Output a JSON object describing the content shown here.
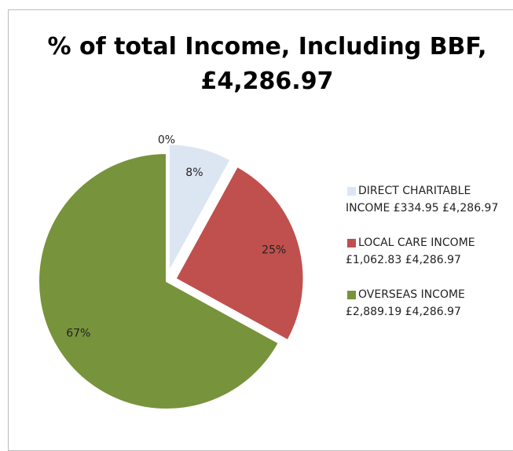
{
  "chart_data": {
    "type": "pie",
    "title": "% of total  Income, Including BBF, £4,286.97",
    "categories": [
      null,
      "DIRECT CHARITABLE INCOME  £334.95 £4,286.97",
      "LOCAL CARE INCOME £1,062.83 £4,286.97",
      "OVERSEAS INCOME £2,889.19 £4,286.97"
    ],
    "values": [
      0,
      8,
      25,
      67
    ],
    "colors": [
      "#4f81bd",
      "#dce6f2",
      "#c0504d",
      "#77933c"
    ],
    "legend": "right"
  }
}
